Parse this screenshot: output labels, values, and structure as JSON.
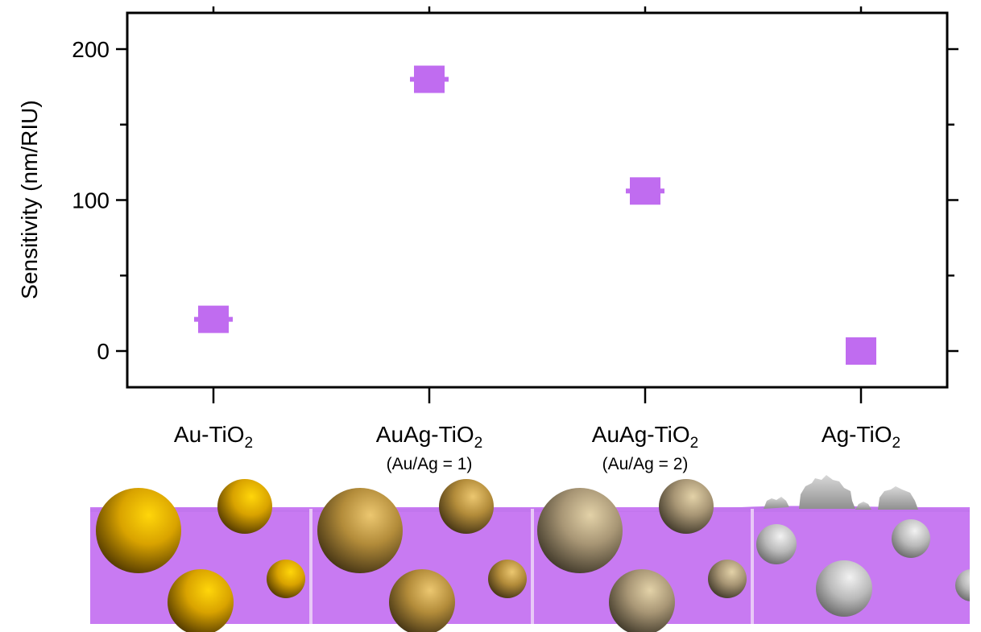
{
  "chart_data": {
    "type": "scatter",
    "ylabel": "Sensitivity (nm/RIU)",
    "ylim": [
      -24,
      224
    ],
    "yticks": [
      0,
      100,
      200
    ],
    "grid": false,
    "marker_color": "#c06cf0",
    "categories": [
      {
        "label_main": "Au-TiO",
        "label_sub": "2",
        "label_extra": ""
      },
      {
        "label_main": "AuAg-TiO",
        "label_sub": "2",
        "label_extra": "(Au/Ag = 1)"
      },
      {
        "label_main": "AuAg-TiO",
        "label_sub": "2",
        "label_extra": "(Au/Ag = 2)"
      },
      {
        "label_main": "Ag-TiO",
        "label_sub": "2",
        "label_extra": ""
      }
    ],
    "values": [
      21,
      180,
      106,
      0
    ],
    "errors": [
      5,
      5,
      5,
      0
    ]
  },
  "illustration": {
    "film_color": "#c87af2",
    "panels": [
      {
        "particle": "gold"
      },
      {
        "particle": "gold-silver-1"
      },
      {
        "particle": "gold-silver-2"
      },
      {
        "particle": "silver"
      }
    ]
  }
}
